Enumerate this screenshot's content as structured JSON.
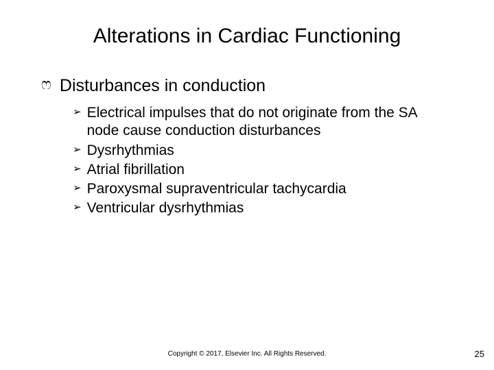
{
  "title": "Alterations in Cardiac Functioning",
  "main": {
    "heading": "Disturbances in conduction",
    "items": [
      "Electrical impulses that do not originate from the SA node cause conduction disturbances",
      "Dysrhythmias",
      "Atrial fibrillation",
      "Paroxysmal supraventricular tachycardia",
      "Ventricular dysrhythmias"
    ]
  },
  "footer": "Copyright © 2017, Elsevier Inc. All Rights Reserved.",
  "page_number": "25",
  "bullets": {
    "level1": "ෆ",
    "level2": "➢"
  }
}
